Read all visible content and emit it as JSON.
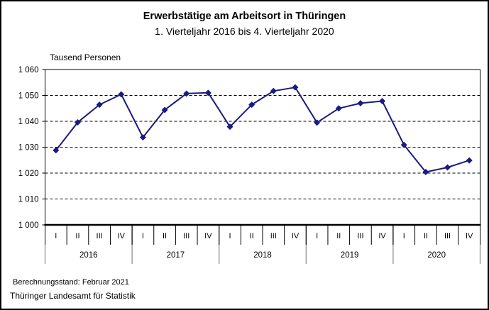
{
  "chart_data": {
    "type": "line",
    "title": "Erwerbstätige am Arbeitsort in Thüringen",
    "subtitle": "1. Vierteljahr 2016 bis 4. Vierteljahr 2020",
    "unit_label": "Tausend Personen",
    "years": [
      "2016",
      "2017",
      "2018",
      "2019",
      "2020"
    ],
    "quarter_labels": [
      "I",
      "II",
      "III",
      "IV"
    ],
    "series": [
      {
        "name": "Erwerbstätige am Arbeitsort",
        "values": [
          1028.8,
          1039.6,
          1046.4,
          1050.4,
          1033.8,
          1044.4,
          1050.7,
          1051.0,
          1037.9,
          1046.4,
          1051.7,
          1053.1,
          1039.5,
          1045.0,
          1047.0,
          1047.8,
          1030.9,
          1020.4,
          1022.2,
          1024.9
        ]
      }
    ],
    "ylim": [
      1000,
      1060
    ],
    "ytick_step": 10,
    "ytick_labels": [
      "1 000",
      "1 010",
      "1 020",
      "1 030",
      "1 040",
      "1 050",
      "1 060"
    ],
    "grid": "dashed-horizontal",
    "legend": "none",
    "marker": "diamond",
    "colors": {
      "line": "#1b1b7f",
      "axis": "#000000",
      "year_divider_lower": "#8c8c8c"
    }
  },
  "footer": {
    "calculation_note": "Berechnungsstand: Februar 2021",
    "source": "Thüringer Landesamt für Statistik"
  }
}
